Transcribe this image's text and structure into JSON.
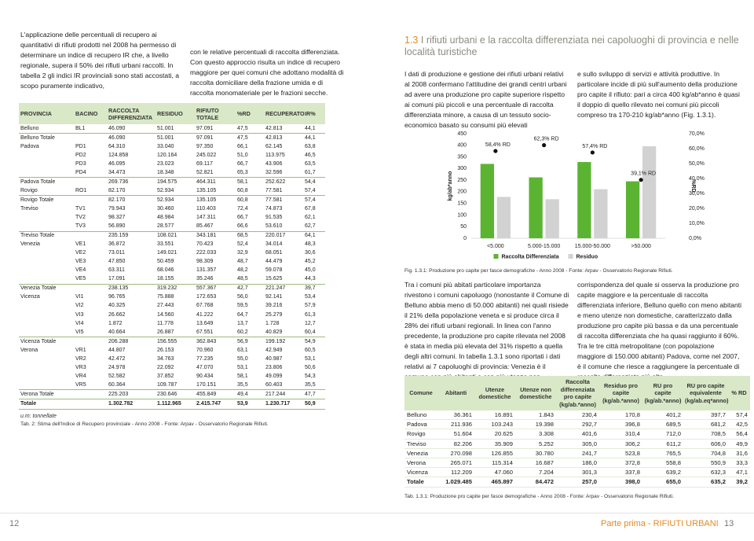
{
  "left_page": {
    "intro": [
      "L'applicazione delle percentuali di recupero ai quantitativi di rifiuti prodotti nel 2008 ha permesso di determinare un indice di recupero IR che, a livello regionale, supera il 50% dei rifiuti urbani raccolti. In tabella 2 gli indici IR provinciali sono stati accostati, a scopo puramente indicativo,",
      "con le relative percentuali di raccolta differenziata. Con questo approccio risulta un indice di recupero maggiore per quei comuni che adottano modalità di raccolta domiciliare della frazione umida e di raccolta monomateriale per le frazioni secche."
    ],
    "table": {
      "columns": [
        "PROVINCIA",
        "BACINO",
        "RACCOLTA DIFFERENZIATA",
        "RESIDUO",
        "RIFIUTO TOTALE",
        "%RD",
        "RECUPERATO",
        "IR%"
      ],
      "rows": [
        [
          "Belluno",
          "BL1",
          "46.090",
          "51.001",
          "97.091",
          "47,5",
          "42.813",
          "44,1"
        ],
        [
          "Belluno Totale",
          null,
          "46.090",
          "51.001",
          "97.091",
          "47,5",
          "42.813",
          "44,1"
        ],
        [
          "Padova",
          "PD1",
          "64.310",
          "33.040",
          "97.350",
          "66,1",
          "62.145",
          "63,8"
        ],
        [
          null,
          "PD2",
          "124.858",
          "120.164",
          "245.022",
          "51,0",
          "113.975",
          "46,5"
        ],
        [
          null,
          "PD3",
          "46.095",
          "23.023",
          "69.117",
          "66,7",
          "43.906",
          "63,5"
        ],
        [
          null,
          "PD4",
          "34.473",
          "18.348",
          "52.821",
          "65,3",
          "32.596",
          "61,7"
        ],
        [
          "Padova Totale",
          null,
          "269.736",
          "194.575",
          "464.311",
          "58,1",
          "252.622",
          "54,4"
        ],
        [
          "Rovigo",
          "RO1",
          "82.170",
          "52.934",
          "135.105",
          "60,8",
          "77.581",
          "57,4"
        ],
        [
          "Rovigo Totale",
          null,
          "82.170",
          "52.934",
          "135.105",
          "60,8",
          "77.581",
          "57,4"
        ],
        [
          "Treviso",
          "TV1",
          "79.943",
          "30.460",
          "110.403",
          "72,4",
          "74.873",
          "67,8"
        ],
        [
          null,
          "TV2",
          "98.327",
          "48.984",
          "147.311",
          "66,7",
          "91.535",
          "62,1"
        ],
        [
          null,
          "TV3",
          "56.890",
          "28.577",
          "85.467",
          "66,6",
          "53.610",
          "62,7"
        ],
        [
          "Treviso Totale",
          null,
          "235.159",
          "108.021",
          "343.181",
          "68,5",
          "220.017",
          "64,1"
        ],
        [
          "Venezia",
          "VE1",
          "36.872",
          "33.551",
          "70.423",
          "52,4",
          "34.014",
          "48,3"
        ],
        [
          null,
          "VE2",
          "73.011",
          "149.021",
          "222.033",
          "32,9",
          "68.051",
          "30,6"
        ],
        [
          null,
          "VE3",
          "47.850",
          "50.459",
          "98.309",
          "48,7",
          "44.479",
          "45,2"
        ],
        [
          null,
          "VE4",
          "63.311",
          "68.046",
          "131.357",
          "48,2",
          "59.078",
          "45,0"
        ],
        [
          null,
          "VE5",
          "17.091",
          "18.155",
          "35.246",
          "48,5",
          "15.625",
          "44,3"
        ],
        [
          "Venezia Totale",
          null,
          "238.135",
          "319.232",
          "557.367",
          "42,7",
          "221.247",
          "39,7"
        ],
        [
          "Vicenza",
          "VI1",
          "96.765",
          "75.888",
          "172.653",
          "56,0",
          "92.141",
          "53,4"
        ],
        [
          null,
          "VI2",
          "40.325",
          "27.443",
          "67.768",
          "59,5",
          "39.216",
          "57,9"
        ],
        [
          null,
          "VI3",
          "26.662",
          "14.560",
          "41.222",
          "64,7",
          "25.279",
          "61,3"
        ],
        [
          null,
          "VI4",
          "1.872",
          "11.778",
          "13.649",
          "13,7",
          "1.728",
          "12,7"
        ],
        [
          null,
          "VI5",
          "40.664",
          "26.887",
          "67.551",
          "60,2",
          "40.829",
          "60,4"
        ],
        [
          "Vicenza Totale",
          null,
          "206.288",
          "156.555",
          "362.843",
          "56,9",
          "199.192",
          "54,9"
        ],
        [
          "Verona",
          "VR1",
          "44.807",
          "26.153",
          "70.960",
          "63,1",
          "42.949",
          "60,5"
        ],
        [
          null,
          "VR2",
          "42.472",
          "34.763",
          "77.235",
          "55,0",
          "40.987",
          "53,1"
        ],
        [
          null,
          "VR3",
          "24.978",
          "22.092",
          "47.070",
          "53,1",
          "23.806",
          "50,6"
        ],
        [
          null,
          "VR4",
          "52.582",
          "37.852",
          "90.434",
          "58,1",
          "49.099",
          "54,3"
        ],
        [
          null,
          "VR5",
          "60.364",
          "109.787",
          "170.151",
          "35,5",
          "60.403",
          "35,5"
        ],
        [
          "Verona Totale",
          null,
          "225.203",
          "230.646",
          "455.849",
          "49,4",
          "217.244",
          "47,7"
        ],
        [
          "Totale",
          null,
          "1.302.782",
          "1.112.965",
          "2.415.747",
          "53,9",
          "1.230.717",
          "50,9"
        ]
      ],
      "unit": "u.m: tonnellate",
      "caption": "Tab. 2: Stima dell'Indice di Recupero provinciale - Anno 2008 - Fonte: Arpav - Osservatorio Regionale Rifiuti."
    },
    "page_number": "12"
  },
  "right_page": {
    "heading": {
      "number": "1.3",
      "title": "I rifiuti urbani e la raccolta differenziata nei capoluoghi di provincia e nelle località turistiche"
    },
    "intro": [
      "I dati di produzione e gestione dei rifiuti urbani relativi al 2008 confermano l'attitudine dei grandi centri urbani ad avere una produzione pro capite superiore rispetto ai comuni più piccoli e una percentuale di raccolta differenziata minore, a causa di un tessuto socio-economico basato su consumi più elevati",
      "e sullo sviluppo di servizi e attività produttive. In particolare incide di più sull'aumento della produzione pro capite il rifiuto: pari a circa 400 kg/ab*anno è quasi il doppio di quello rilevato nei comuni più piccoli compreso tra 170-210 kg/ab*anno (Fig. 1.3.1)."
    ],
    "figure_caption": "Fig. 1.3.1: Produzione pro capite per fasce demografiche - Anno 2008 - Fonte: Arpav - Osservatorio Regionale Rifiuti.",
    "body": [
      "Tra i comuni più abitati particolare importanza rivestono i comuni capoluogo (nonostante il Comune di Belluno abbia meno di 50.000 abitanti) nei quali risiede il 21% della popolazione veneta e si produce circa il 28% dei rifiuti urbani regionali. In linea con l'anno precedente, la produzione pro capite rilevata nel 2008 è stata in media più elevata del 31% rispetto a quella degli altri comuni. In tabella 1.3.1 sono riportati i dati relativi ai 7 capoluoghi di provincia: Venezia è il comune con più abitanti e con più utenze non domestiche in",
      "corrispondenza del quale si osserva la produzione pro capite maggiore e la percentuale di raccolta differenziata inferiore, Belluno quello con meno abitanti e meno utenze non domestiche, caratterizzato dalla produzione pro capite più bassa e da una percentuale di raccolta differenziata che ha quasi raggiunto il 60%. Tra le tre città metropolitane (con popolazione maggiore di 150.000 abitanti) Padova, come nel 2007, è il comune che riesce a raggiungere la percentuale di raccolta differenziata più alta."
    ],
    "table": {
      "columns": [
        "Comune",
        "Abitanti",
        "Utenze domestiche",
        "Utenze non domestiche",
        "Raccolta differenziata pro capite (kg/ab.*anno)",
        "Residuo pro capite (kg/ab.*anno)",
        "RU pro capite (kg/ab.*anno)",
        "RU pro capite equivalente (kg/ab.eq*anno)",
        "% RD"
      ],
      "rows": [
        [
          "Belluno",
          "36.361",
          "16.891",
          "1.843",
          "230,4",
          "170,8",
          "401,2",
          "397,7",
          "57,4"
        ],
        [
          "Padova",
          "211.936",
          "103.243",
          "19.398",
          "292,7",
          "396,8",
          "689,5",
          "681,2",
          "42,5"
        ],
        [
          "Rovigo",
          "51.604",
          "20.625",
          "3.308",
          "401,6",
          "310,4",
          "712,0",
          "708,5",
          "56,4"
        ],
        [
          "Treviso",
          "82.206",
          "35.909",
          "5.252",
          "305,0",
          "306,2",
          "611,2",
          "606,0",
          "49,9"
        ],
        [
          "Venezia",
          "270.098",
          "126.855",
          "30.780",
          "241,7",
          "523,8",
          "765,5",
          "704,8",
          "31,6"
        ],
        [
          "Verona",
          "265.071",
          "115.314",
          "16.687",
          "186,0",
          "372,8",
          "558,8",
          "550,9",
          "33,3"
        ],
        [
          "Vicenza",
          "112.209",
          "47.060",
          "7.204",
          "301,3",
          "337,8",
          "639,2",
          "632,3",
          "47,1"
        ],
        [
          "Totale",
          "1.029.485",
          "465.897",
          "84.472",
          "257,0",
          "398,0",
          "655,0",
          "635,2",
          "39,2"
        ]
      ],
      "caption": "Tab. 1.3.1: Produzione pro capite per fasce demografiche - Anno 2008 - Fonte: Arpav - Osservatorio Regionale Rifiuti."
    },
    "running_title": "Parte prima - RIFIUTI URBANI",
    "page_number": "13"
  },
  "chart_data": {
    "type": "bar",
    "categories": [
      "<5.000",
      "5.000-15.000",
      "15.000-50.000",
      ">50.000"
    ],
    "series": [
      {
        "name": "Raccolta Differenziata",
        "color": "#5bb431",
        "values": [
          320,
          262,
          328,
          245
        ]
      },
      {
        "name": "Residuo",
        "color": "#d2d2d2",
        "values": [
          178,
          168,
          211,
          396
        ]
      },
      {
        "type": "scatter",
        "axis": "y2",
        "color": "#111111",
        "values": [
          58.4,
          62.3,
          57.4,
          39.1
        ],
        "value_labels": [
          "58,4% RD",
          "62,3% RD",
          "57,4% RD",
          "39,1% RD"
        ]
      }
    ],
    "y_label": "kg/ab*anno",
    "y2_label": "%RD",
    "ylim": [
      0,
      450
    ],
    "yticks": [
      0,
      50,
      100,
      150,
      200,
      250,
      300,
      350,
      400,
      450
    ],
    "y2lim": [
      0,
      70
    ],
    "y2ticks": [
      {
        "value": 0,
        "label": "0,0%"
      },
      {
        "value": 10,
        "label": "10,0%"
      },
      {
        "value": 20,
        "label": "20,0%"
      },
      {
        "value": 30,
        "label": "30,0%"
      },
      {
        "value": 40,
        "label": "40,0%"
      },
      {
        "value": 50,
        "label": "50,0%"
      },
      {
        "value": 60,
        "label": "60,0%"
      },
      {
        "value": 70,
        "label": "70,0%"
      }
    ],
    "grid": false
  }
}
